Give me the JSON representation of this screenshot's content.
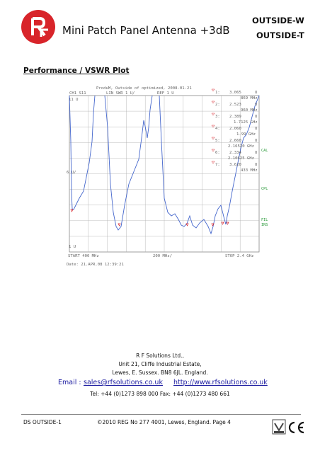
{
  "header": {
    "title": "Mini Patch Panel Antenna +3dB",
    "product_codes": [
      "OUTSIDE-W",
      "OUTSIDE-T"
    ],
    "logo_text": "RF SOLUTIONS"
  },
  "section_title": "Performance / VSWR Plot",
  "plot": {
    "heading": "ProduM, Outside of optimized, 2008-01-21",
    "channel": "CH1 S11",
    "format": "LIN SWR 1 U/",
    "ref": "REF 1 U",
    "top_ref": "11 U",
    "mid_ref": "6 U/",
    "bottom_ref": "1 U",
    "start": "START 400 MHz",
    "div": "200 MHz/",
    "stop": "STOP 2.4 GHz",
    "date": "Date:      21.APR.08  12:39:21",
    "side_labels": [
      "CAL",
      "CPL",
      "FIL",
      "INS"
    ],
    "markers": [
      {
        "id": "1:",
        "value": "3.065",
        "unit": "U",
        "freq": "869 MHz"
      },
      {
        "id": "2:",
        "value": "2.523",
        "unit": "U",
        "freq": "960 MHz"
      },
      {
        "id": "3:",
        "value": "2.389",
        "unit": "U",
        "freq": "1.7125 GHz"
      },
      {
        "id": "4:",
        "value": "2.060",
        "unit": "U",
        "freq": "1.99 GHz"
      },
      {
        "id": "5:",
        "value": "2.660",
        "unit": "U",
        "freq": "2.16520 GHz"
      },
      {
        "id": "6:",
        "value": "2.334",
        "unit": "U",
        "freq": "2.10625 GHz"
      },
      {
        "id": "7:",
        "value": "3.620",
        "unit": "U",
        "freq": "433 MHz"
      }
    ]
  },
  "company": {
    "name": "R F Solutions Ltd.,",
    "address_line1": "Unit 21, Cliffe Industrial Estate,",
    "address_line2": "Lewes, E. Sussex.  BN8 6JL. England.",
    "email_label": "Email :",
    "email": "sales@rfsolutions.co.uk",
    "website": "http://www.rfsolutions.co.uk",
    "phones": "Tel: +44 (0)1273 898 000    Fax: +44 (0)1273 480 661"
  },
  "footer": {
    "doc_code": "DS OUTSIDE-1",
    "info": "©2010  REG No 277 4001, Lewes, England. Page 4"
  }
}
